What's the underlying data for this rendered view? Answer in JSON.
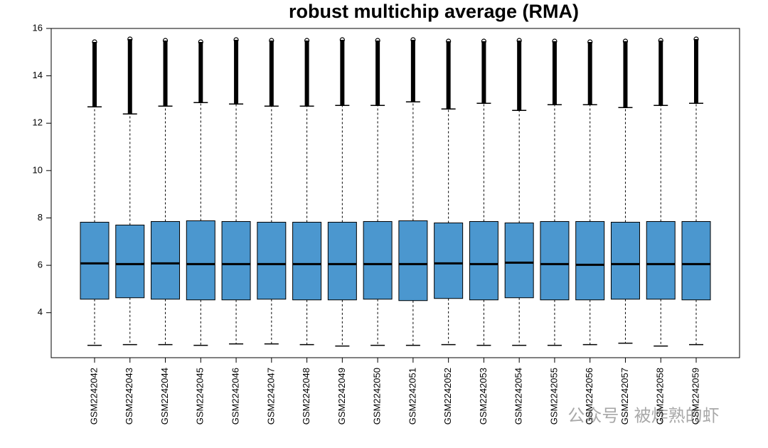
{
  "chart_data": {
    "type": "box",
    "title": "robust multichip average (RMA)",
    "categories": [
      "GSM2242042",
      "GSM2242043",
      "GSM2242044",
      "GSM2242045",
      "GSM2242046",
      "GSM2242047",
      "GSM2242048",
      "GSM2242049",
      "GSM2242050",
      "GSM2242051",
      "GSM2242052",
      "GSM2242053",
      "GSM2242054",
      "GSM2242055",
      "GSM2242056",
      "GSM2242057",
      "GSM2242058",
      "GSM2242059"
    ],
    "boxes": [
      {
        "low": 2.62,
        "q1": 4.57,
        "median": 6.08,
        "q3": 7.82,
        "high": 12.69,
        "max": 15.43
      },
      {
        "low": 2.65,
        "q1": 4.63,
        "median": 6.05,
        "q3": 7.7,
        "high": 12.39,
        "max": 15.55
      },
      {
        "low": 2.65,
        "q1": 4.57,
        "median": 6.08,
        "q3": 7.85,
        "high": 12.72,
        "max": 15.49
      },
      {
        "low": 2.62,
        "q1": 4.54,
        "median": 6.05,
        "q3": 7.88,
        "high": 12.87,
        "max": 15.43
      },
      {
        "low": 2.68,
        "q1": 4.54,
        "median": 6.05,
        "q3": 7.85,
        "high": 12.81,
        "max": 15.52
      },
      {
        "low": 2.68,
        "q1": 4.57,
        "median": 6.05,
        "q3": 7.82,
        "high": 12.72,
        "max": 15.49
      },
      {
        "low": 2.65,
        "q1": 4.54,
        "median": 6.05,
        "q3": 7.82,
        "high": 12.72,
        "max": 15.49
      },
      {
        "low": 2.59,
        "q1": 4.54,
        "median": 6.05,
        "q3": 7.82,
        "high": 12.75,
        "max": 15.52
      },
      {
        "low": 2.62,
        "q1": 4.57,
        "median": 6.05,
        "q3": 7.85,
        "high": 12.75,
        "max": 15.49
      },
      {
        "low": 2.62,
        "q1": 4.51,
        "median": 6.05,
        "q3": 7.88,
        "high": 12.9,
        "max": 15.52
      },
      {
        "low": 2.65,
        "q1": 4.6,
        "median": 6.08,
        "q3": 7.79,
        "high": 12.6,
        "max": 15.46
      },
      {
        "low": 2.62,
        "q1": 4.54,
        "median": 6.05,
        "q3": 7.85,
        "high": 12.84,
        "max": 15.46
      },
      {
        "low": 2.62,
        "q1": 4.63,
        "median": 6.11,
        "q3": 7.79,
        "high": 12.54,
        "max": 15.49
      },
      {
        "low": 2.62,
        "q1": 4.54,
        "median": 6.05,
        "q3": 7.85,
        "high": 12.78,
        "max": 15.46
      },
      {
        "low": 2.65,
        "q1": 4.54,
        "median": 6.02,
        "q3": 7.85,
        "high": 12.78,
        "max": 15.43
      },
      {
        "low": 2.71,
        "q1": 4.57,
        "median": 6.05,
        "q3": 7.82,
        "high": 12.66,
        "max": 15.46
      },
      {
        "low": 2.59,
        "q1": 4.57,
        "median": 6.05,
        "q3": 7.85,
        "high": 12.75,
        "max": 15.49
      },
      {
        "low": 2.65,
        "q1": 4.54,
        "median": 6.05,
        "q3": 7.85,
        "high": 12.84,
        "max": 15.55
      }
    ],
    "color": "#4b97cf",
    "ylim": [
      2.1,
      16.0
    ],
    "yticks": [
      4,
      6,
      8,
      10,
      12,
      14,
      16
    ],
    "watermark": "公众号 · 被炸熟的虾"
  }
}
